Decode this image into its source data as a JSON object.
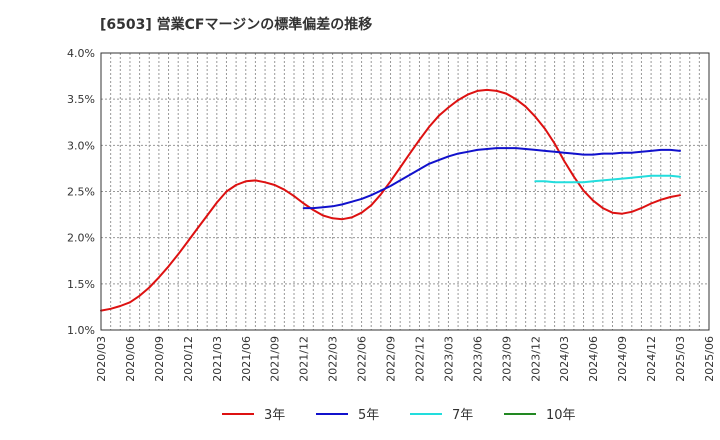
{
  "title": "[6503]  営業CFマージンの標準偏差の推移",
  "chart_data": {
    "type": "line",
    "title": "[6503]  営業CFマージンの標準偏差の推移",
    "ylim": [
      1.0,
      4.0
    ],
    "y_ticks": [
      "1.0%",
      "1.5%",
      "2.0%",
      "2.5%",
      "3.0%",
      "3.5%",
      "4.0%"
    ],
    "y_tick_values": [
      1.0,
      1.5,
      2.0,
      2.5,
      3.0,
      3.5,
      4.0
    ],
    "x_ticks": [
      "2020/03",
      "2020/06",
      "2020/09",
      "2020/12",
      "2021/03",
      "2021/06",
      "2021/09",
      "2021/12",
      "2022/03",
      "2022/06",
      "2022/09",
      "2022/12",
      "2023/03",
      "2023/06",
      "2023/09",
      "2023/12",
      "2024/03",
      "2024/06",
      "2024/09",
      "2024/12",
      "2025/03",
      "2025/06"
    ],
    "grid": true,
    "legend_position": "bottom",
    "series": [
      {
        "name": "3年",
        "color": "#dd1111",
        "points": [
          [
            "2020/03",
            1.21
          ],
          [
            "2020/04",
            1.23
          ],
          [
            "2020/05",
            1.26
          ],
          [
            "2020/06",
            1.3
          ],
          [
            "2020/07",
            1.37
          ],
          [
            "2020/08",
            1.46
          ],
          [
            "2020/09",
            1.57
          ],
          [
            "2020/10",
            1.69
          ],
          [
            "2020/11",
            1.82
          ],
          [
            "2020/12",
            1.96
          ],
          [
            "2021/01",
            2.1
          ],
          [
            "2021/02",
            2.24
          ],
          [
            "2021/03",
            2.38
          ],
          [
            "2021/04",
            2.5
          ],
          [
            "2021/05",
            2.57
          ],
          [
            "2021/06",
            2.61
          ],
          [
            "2021/07",
            2.62
          ],
          [
            "2021/08",
            2.6
          ],
          [
            "2021/09",
            2.57
          ],
          [
            "2021/10",
            2.52
          ],
          [
            "2021/11",
            2.45
          ],
          [
            "2021/12",
            2.37
          ],
          [
            "2022/01",
            2.3
          ],
          [
            "2022/02",
            2.24
          ],
          [
            "2022/03",
            2.21
          ],
          [
            "2022/04",
            2.2
          ],
          [
            "2022/05",
            2.22
          ],
          [
            "2022/06",
            2.27
          ],
          [
            "2022/07",
            2.35
          ],
          [
            "2022/08",
            2.47
          ],
          [
            "2022/09",
            2.61
          ],
          [
            "2022/10",
            2.76
          ],
          [
            "2022/11",
            2.91
          ],
          [
            "2022/12",
            3.06
          ],
          [
            "2023/01",
            3.2
          ],
          [
            "2023/02",
            3.32
          ],
          [
            "2023/03",
            3.41
          ],
          [
            "2023/04",
            3.49
          ],
          [
            "2023/05",
            3.55
          ],
          [
            "2023/06",
            3.59
          ],
          [
            "2023/07",
            3.6
          ],
          [
            "2023/08",
            3.59
          ],
          [
            "2023/09",
            3.56
          ],
          [
            "2023/10",
            3.5
          ],
          [
            "2023/11",
            3.42
          ],
          [
            "2023/12",
            3.31
          ],
          [
            "2024/01",
            3.18
          ],
          [
            "2024/02",
            3.02
          ],
          [
            "2024/03",
            2.83
          ],
          [
            "2024/04",
            2.66
          ],
          [
            "2024/05",
            2.51
          ],
          [
            "2024/06",
            2.4
          ],
          [
            "2024/07",
            2.32
          ],
          [
            "2024/08",
            2.27
          ],
          [
            "2024/09",
            2.26
          ],
          [
            "2024/10",
            2.28
          ],
          [
            "2024/11",
            2.32
          ],
          [
            "2024/12",
            2.37
          ],
          [
            "2025/01",
            2.41
          ],
          [
            "2025/02",
            2.44
          ],
          [
            "2025/03",
            2.46
          ]
        ]
      },
      {
        "name": "5年",
        "color": "#1111cc",
        "points": [
          [
            "2021/12",
            2.32
          ],
          [
            "2022/01",
            2.32
          ],
          [
            "2022/02",
            2.33
          ],
          [
            "2022/03",
            2.34
          ],
          [
            "2022/04",
            2.36
          ],
          [
            "2022/05",
            2.39
          ],
          [
            "2022/06",
            2.42
          ],
          [
            "2022/07",
            2.46
          ],
          [
            "2022/08",
            2.51
          ],
          [
            "2022/09",
            2.56
          ],
          [
            "2022/10",
            2.62
          ],
          [
            "2022/11",
            2.68
          ],
          [
            "2022/12",
            2.74
          ],
          [
            "2023/01",
            2.8
          ],
          [
            "2023/02",
            2.84
          ],
          [
            "2023/03",
            2.88
          ],
          [
            "2023/04",
            2.91
          ],
          [
            "2023/05",
            2.93
          ],
          [
            "2023/06",
            2.95
          ],
          [
            "2023/07",
            2.96
          ],
          [
            "2023/08",
            2.97
          ],
          [
            "2023/09",
            2.97
          ],
          [
            "2023/10",
            2.97
          ],
          [
            "2023/11",
            2.96
          ],
          [
            "2023/12",
            2.95
          ],
          [
            "2024/01",
            2.94
          ],
          [
            "2024/02",
            2.93
          ],
          [
            "2024/03",
            2.92
          ],
          [
            "2024/04",
            2.91
          ],
          [
            "2024/05",
            2.9
          ],
          [
            "2024/06",
            2.9
          ],
          [
            "2024/07",
            2.91
          ],
          [
            "2024/08",
            2.91
          ],
          [
            "2024/09",
            2.92
          ],
          [
            "2024/10",
            2.92
          ],
          [
            "2024/11",
            2.93
          ],
          [
            "2024/12",
            2.94
          ],
          [
            "2025/01",
            2.95
          ],
          [
            "2025/02",
            2.95
          ],
          [
            "2025/03",
            2.94
          ]
        ]
      },
      {
        "name": "7年",
        "color": "#22dddd",
        "points": [
          [
            "2023/12",
            2.61
          ],
          [
            "2024/01",
            2.61
          ],
          [
            "2024/02",
            2.6
          ],
          [
            "2024/03",
            2.6
          ],
          [
            "2024/04",
            2.6
          ],
          [
            "2024/05",
            2.6
          ],
          [
            "2024/06",
            2.61
          ],
          [
            "2024/07",
            2.62
          ],
          [
            "2024/08",
            2.63
          ],
          [
            "2024/09",
            2.64
          ],
          [
            "2024/10",
            2.65
          ],
          [
            "2024/11",
            2.66
          ],
          [
            "2024/12",
            2.67
          ],
          [
            "2025/01",
            2.67
          ],
          [
            "2025/02",
            2.67
          ],
          [
            "2025/03",
            2.66
          ]
        ]
      },
      {
        "name": "10年",
        "color": "#228822",
        "points": []
      }
    ]
  }
}
